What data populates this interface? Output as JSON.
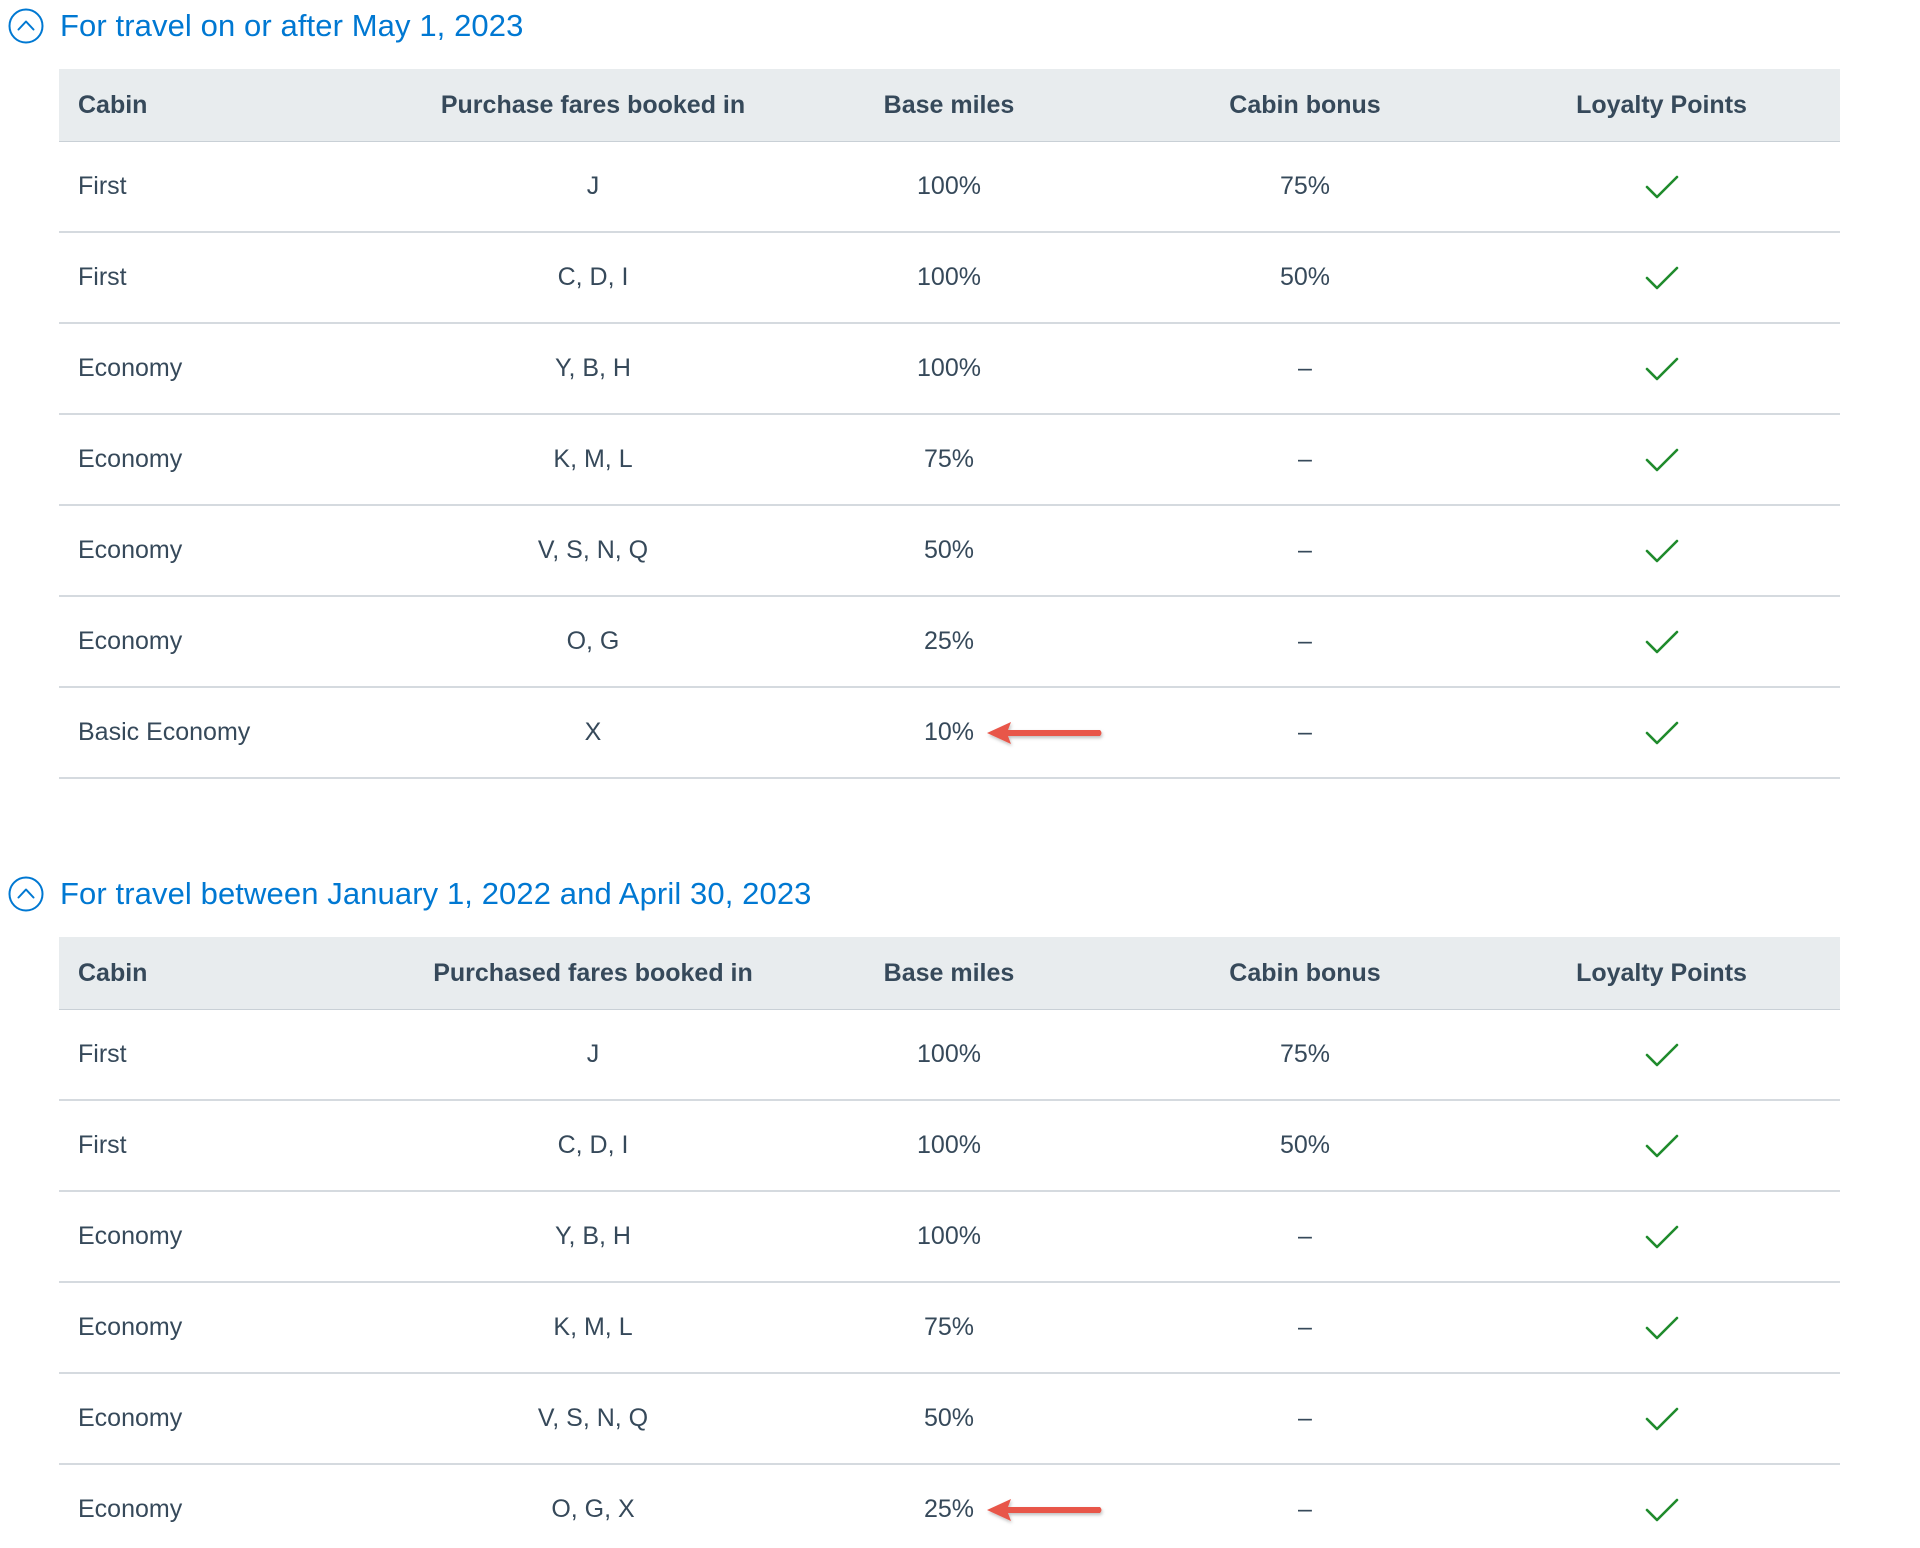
{
  "colors": {
    "link": "#0078d2",
    "header_bg": "#e8ecee",
    "text": "#36495a",
    "check": "#1f8b2c",
    "arrow": "#e8564a",
    "divider": "#d5dadf"
  },
  "sections": [
    {
      "title": "For travel on or after May 1, 2023",
      "toggle_icon": "chevron-up-circle-icon",
      "columns": [
        "Cabin",
        "Purchase fares booked in",
        "Base miles",
        "Cabin bonus",
        "Loyalty Points"
      ],
      "rows": [
        {
          "cabin": "First",
          "fares": "J",
          "base": "100%",
          "bonus": "75%",
          "loyalty": "check-icon"
        },
        {
          "cabin": "First",
          "fares": "C, D, I",
          "base": "100%",
          "bonus": "50%",
          "loyalty": "check-icon"
        },
        {
          "cabin": "Economy",
          "fares": "Y, B, H",
          "base": "100%",
          "bonus": "–",
          "loyalty": "check-icon"
        },
        {
          "cabin": "Economy",
          "fares": "K, M, L",
          "base": "75%",
          "bonus": "–",
          "loyalty": "check-icon"
        },
        {
          "cabin": "Economy",
          "fares": "V, S, N, Q",
          "base": "50%",
          "bonus": "–",
          "loyalty": "check-icon"
        },
        {
          "cabin": "Economy",
          "fares": "O, G",
          "base": "25%",
          "bonus": "–",
          "loyalty": "check-icon"
        },
        {
          "cabin": "Basic Economy",
          "fares": "X",
          "base": "10%",
          "bonus": "–",
          "loyalty": "check-icon",
          "annotation": "red-arrow-icon"
        }
      ]
    },
    {
      "title": "For travel between January 1, 2022 and April 30, 2023",
      "toggle_icon": "chevron-up-circle-icon",
      "columns": [
        "Cabin",
        "Purchased fares booked in",
        "Base miles",
        "Cabin bonus",
        "Loyalty Points"
      ],
      "rows": [
        {
          "cabin": "First",
          "fares": "J",
          "base": "100%",
          "bonus": "75%",
          "loyalty": "check-icon"
        },
        {
          "cabin": "First",
          "fares": "C, D, I",
          "base": "100%",
          "bonus": "50%",
          "loyalty": "check-icon"
        },
        {
          "cabin": "Economy",
          "fares": "Y, B, H",
          "base": "100%",
          "bonus": "–",
          "loyalty": "check-icon"
        },
        {
          "cabin": "Economy",
          "fares": "K, M, L",
          "base": "75%",
          "bonus": "–",
          "loyalty": "check-icon"
        },
        {
          "cabin": "Economy",
          "fares": "V, S, N, Q",
          "base": "50%",
          "bonus": "–",
          "loyalty": "check-icon"
        },
        {
          "cabin": "Economy",
          "fares": "O, G, X",
          "base": "25%",
          "bonus": "–",
          "loyalty": "check-icon",
          "annotation": "red-arrow-icon"
        }
      ]
    }
  ]
}
